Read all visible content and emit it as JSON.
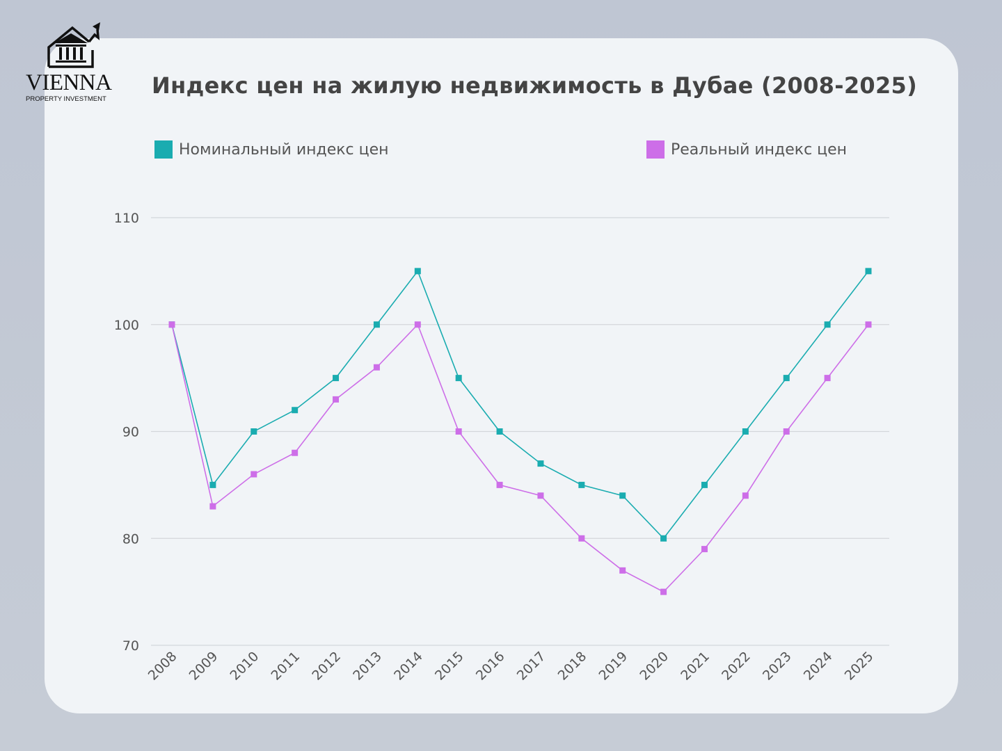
{
  "logo": {
    "word": "VIENNA",
    "sub": "PROPERTY INVESTMENT"
  },
  "colors": {
    "nominal": "#1aacb0",
    "real": "#cd6ee8",
    "grid": "#d4d7db"
  },
  "chart_data": {
    "type": "line",
    "title": "Индекс цен на жилую недвижимость в Дубае (2008-2025)",
    "xlabel": "",
    "ylabel": "",
    "x": [
      "2008",
      "2009",
      "2010",
      "2011",
      "2012",
      "2013",
      "2014",
      "2015",
      "2016",
      "2017",
      "2018",
      "2019",
      "2020",
      "2021",
      "2022",
      "2023",
      "2024",
      "2025"
    ],
    "ylim": [
      70,
      110
    ],
    "yticks": [
      70,
      80,
      90,
      100,
      110
    ],
    "grid": true,
    "legend_placement": "top",
    "marker": "square",
    "series": [
      {
        "name": "Номинальный индекс цен",
        "color": "#1aacb0",
        "values": [
          100,
          85,
          90,
          92,
          95,
          100,
          105,
          95,
          90,
          87,
          85,
          84,
          80,
          85,
          90,
          95,
          100,
          105
        ]
      },
      {
        "name": "Реальный индекс цен",
        "color": "#cd6ee8",
        "values": [
          100,
          83,
          86,
          88,
          93,
          96,
          100,
          90,
          85,
          84,
          80,
          77,
          75,
          79,
          84,
          90,
          95,
          100
        ]
      }
    ]
  }
}
